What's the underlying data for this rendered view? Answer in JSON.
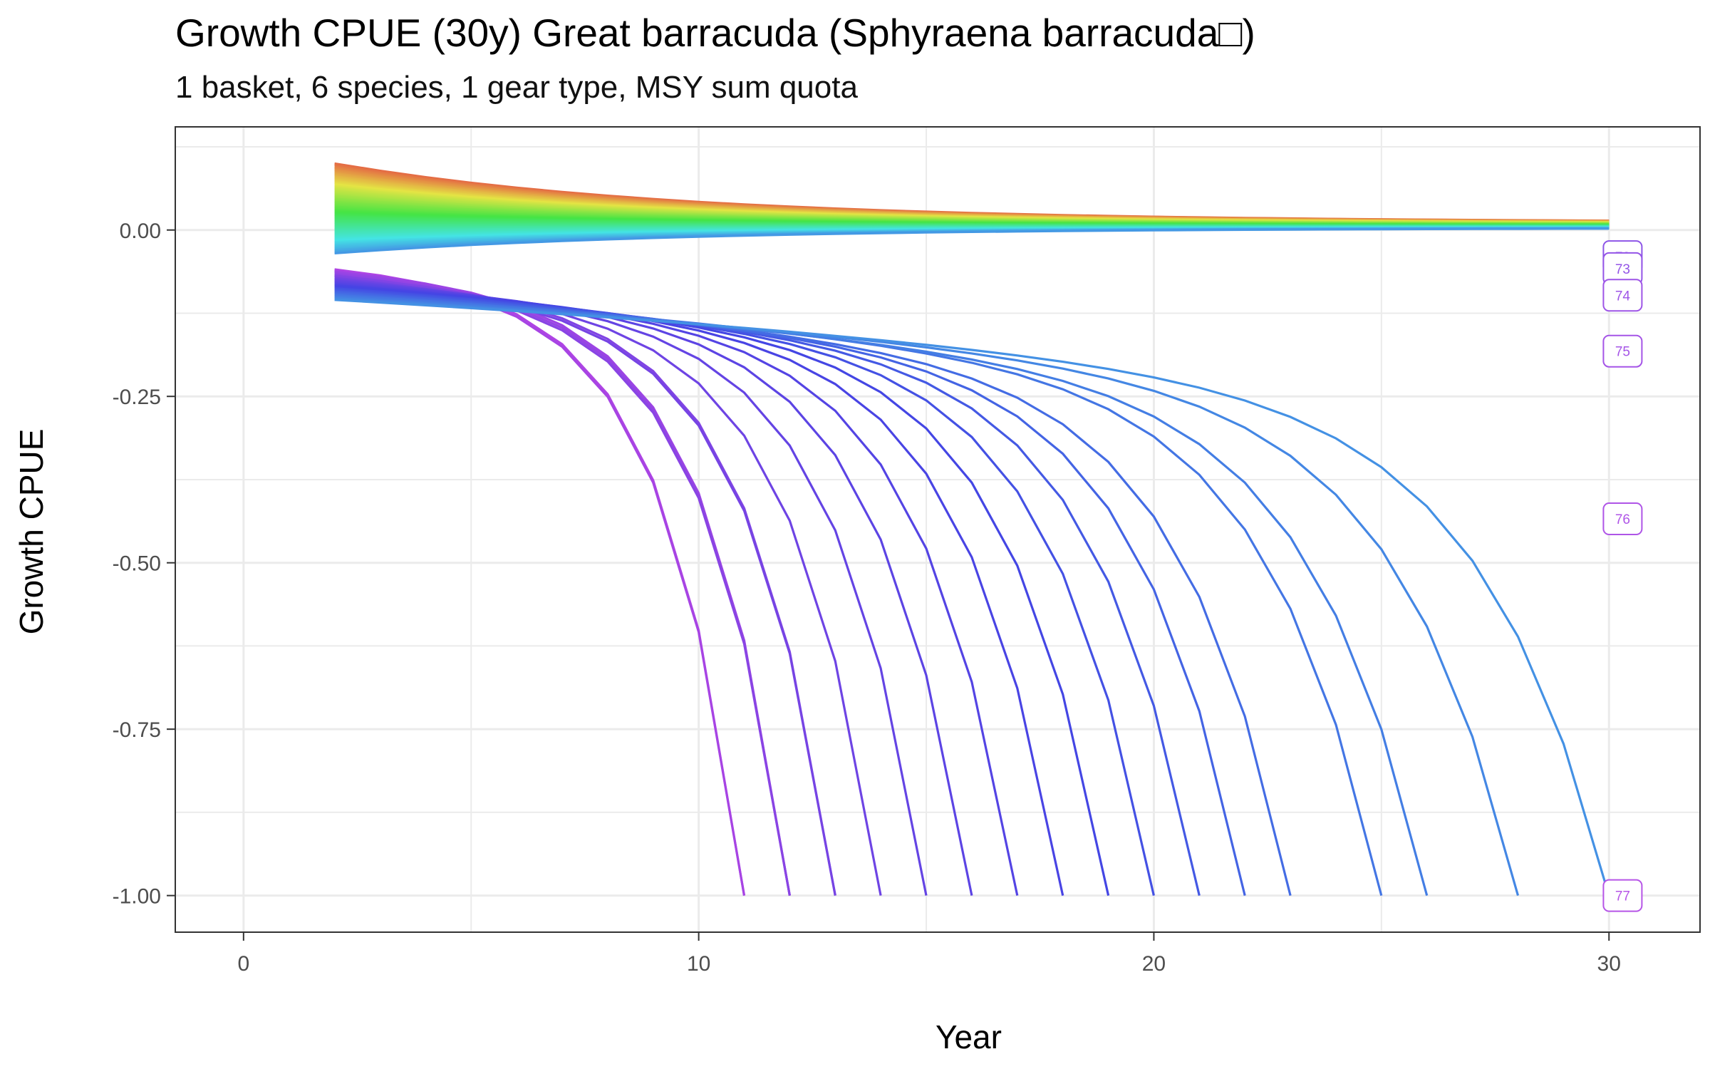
{
  "chart_data": {
    "type": "line",
    "title": "Growth CPUE (30y) Great barracuda (Sphyraena barracuda□)",
    "subtitle": "1 basket, 6 species, 1 gear type, MSY sum quota",
    "xlabel": "Year",
    "ylabel": "Growth CPUE",
    "xlim": [
      -1.5,
      32
    ],
    "ylim": [
      -1.055,
      0.155
    ],
    "x_ticks": [
      0,
      10,
      20,
      30
    ],
    "x_tick_labels": [
      "0",
      "10",
      "20",
      "30"
    ],
    "y_ticks": [
      0,
      -0.25,
      -0.5,
      -0.75,
      -1
    ],
    "y_tick_labels": [
      "0.00",
      "-0.25",
      "-0.50",
      "-0.75",
      "-1.00"
    ],
    "grid": true,
    "legend": "none",
    "series_count": 78,
    "series_count_note": "line series indexed 0-77, colored by hue from orange (0) to purple (77); most converge near 0, high indexes decline sharply",
    "collapse_years": [
      11,
      11,
      12,
      12,
      12,
      13,
      13,
      14,
      15,
      16,
      17,
      18,
      19,
      20,
      21,
      22,
      23,
      25,
      26,
      28,
      30
    ],
    "visible_end_labels": [
      {
        "label": "72",
        "value": -0.04
      },
      {
        "label": "73",
        "value": -0.058
      },
      {
        "label": "74",
        "value": -0.098
      },
      {
        "label": "75",
        "value": -0.182
      },
      {
        "label": "76",
        "value": -0.434
      },
      {
        "label": "77",
        "value": -1.0
      }
    ]
  }
}
